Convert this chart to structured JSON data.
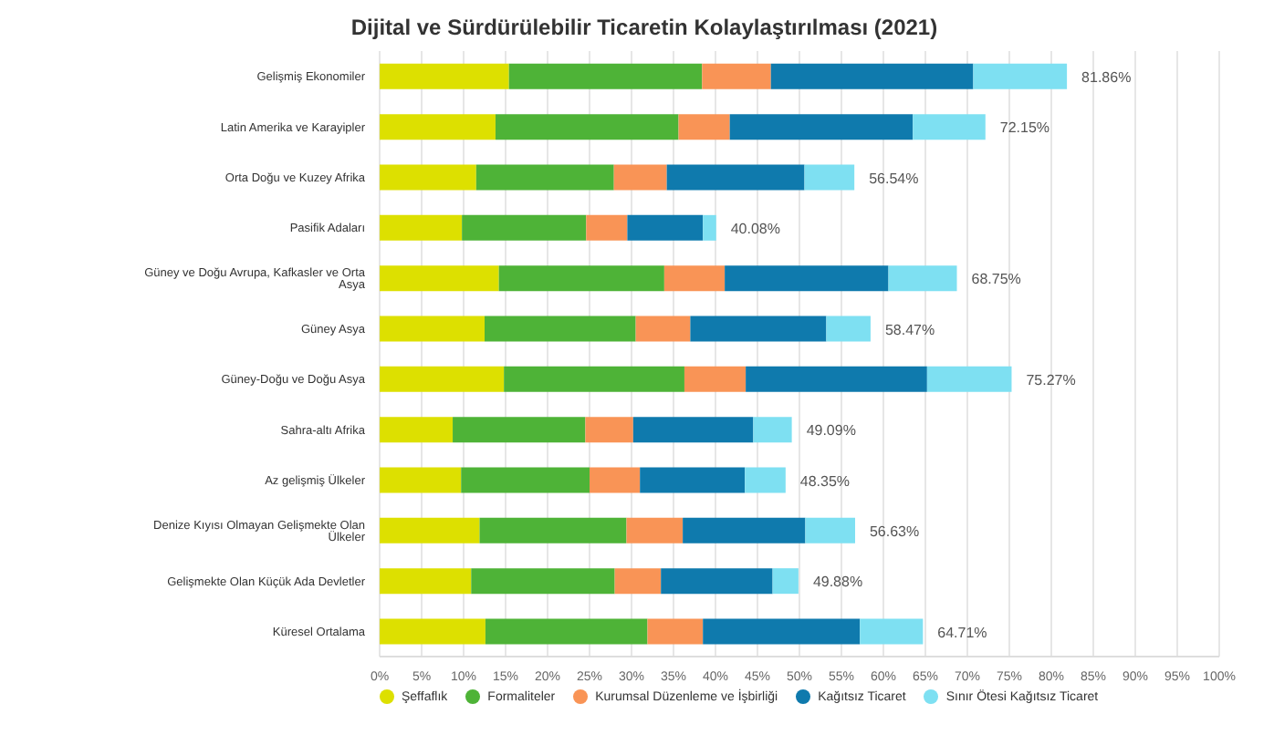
{
  "chart_data": {
    "type": "bar",
    "orientation": "horizontal",
    "stacked": true,
    "title": "Dijital ve Sürdürülebilir Ticaretin Kolaylaştırılması (2021)",
    "categories": [
      "Gelişmiş Ekonomiler",
      "Latin Amerika ve Karayipler",
      "Orta Doğu ve Kuzey Afrika",
      "Pasifik Adaları",
      "Güney ve Doğu Avrupa, Kafkasler ve Orta Asya",
      "Güney Asya",
      "Güney-Doğu ve Doğu Asya",
      "Sahra-altı Afrika",
      "Az gelişmiş Ülkeler",
      "Denize Kıyısı Olmayan Gelişmekte Olan Ülkeler",
      "Gelişmekte Olan Küçük Ada Devletler",
      "Küresel Ortalama"
    ],
    "series": [
      {
        "name": "Şeffaflık",
        "color": "#dde000",
        "values": [
          15.4,
          13.8,
          11.5,
          9.8,
          14.2,
          12.5,
          14.8,
          8.7,
          9.7,
          11.9,
          10.9,
          12.6
        ]
      },
      {
        "name": "Formaliteler",
        "color": "#4eb337",
        "values": [
          23.0,
          21.8,
          16.4,
          14.8,
          19.7,
          18.0,
          21.5,
          15.8,
          15.3,
          17.5,
          17.1,
          19.3
        ]
      },
      {
        "name": "Kurumsal Düzenleme ve İşbirliği",
        "color": "#f99456",
        "values": [
          8.2,
          6.1,
          6.3,
          4.9,
          7.2,
          6.5,
          7.3,
          5.7,
          6.0,
          6.7,
          5.5,
          6.6
        ]
      },
      {
        "name": "Kağıtsız Ticaret",
        "color": "#0f7aad",
        "values": [
          24.1,
          21.8,
          16.4,
          9.0,
          19.5,
          16.2,
          21.6,
          14.3,
          12.5,
          14.6,
          13.3,
          18.7
        ]
      },
      {
        "name": "Sınır Ötesi Kağıtsız Ticaret",
        "color": "#7ee0f2",
        "values": [
          11.16,
          8.65,
          5.94,
          1.58,
          8.15,
          5.27,
          10.07,
          4.59,
          4.85,
          5.93,
          3.08,
          7.51
        ]
      }
    ],
    "totals": [
      "81.86%",
      "72.15%",
      "56.54%",
      "40.08%",
      "68.75%",
      "58.47%",
      "75.27%",
      "49.09%",
      "48.35%",
      "56.63%",
      "49.88%",
      "64.71%"
    ],
    "xlim": [
      0,
      100
    ],
    "xticks": [
      {
        "value": 0,
        "label": "0%"
      },
      {
        "value": 5,
        "label": "5%"
      },
      {
        "value": 10,
        "label": "10%"
      },
      {
        "value": 15,
        "label": "15%"
      },
      {
        "value": 20,
        "label": "20%"
      },
      {
        "value": 25,
        "label": "25%"
      },
      {
        "value": 30,
        "label": "30%"
      },
      {
        "value": 35,
        "label": "35%"
      },
      {
        "value": 40,
        "label": "40%"
      },
      {
        "value": 45,
        "label": "45%"
      },
      {
        "value": 50,
        "label": "50%"
      },
      {
        "value": 55,
        "label": "55%"
      },
      {
        "value": 60,
        "label": "60%"
      },
      {
        "value": 65,
        "label": "65%"
      },
      {
        "value": 70,
        "label": "70%"
      },
      {
        "value": 75,
        "label": "75%"
      },
      {
        "value": 80,
        "label": "80%"
      },
      {
        "value": 85,
        "label": "85%"
      },
      {
        "value": 90,
        "label": "90%"
      },
      {
        "value": 95,
        "label": "95%"
      },
      {
        "value": 100,
        "label": "100%"
      }
    ],
    "grid": "x",
    "legend": "bottom"
  }
}
